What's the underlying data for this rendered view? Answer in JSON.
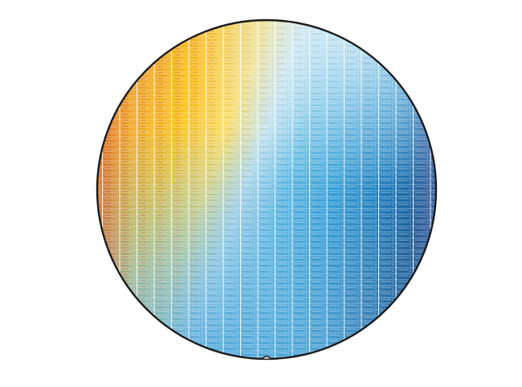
{
  "scene": {
    "subject": "silicon-wafer",
    "background_color": "#ffffff"
  },
  "wafer": {
    "rim_color": "#1a1a1a",
    "gradient_stops": [
      "#e8692a",
      "#f0a030",
      "#ffc41f",
      "#ffe066",
      "#bfe3f2",
      "#5bbbe6",
      "#2f9ed8",
      "#1f7fc0",
      "#1b5c98"
    ],
    "die_line_color": "#ffffff",
    "notch": "bottom"
  }
}
